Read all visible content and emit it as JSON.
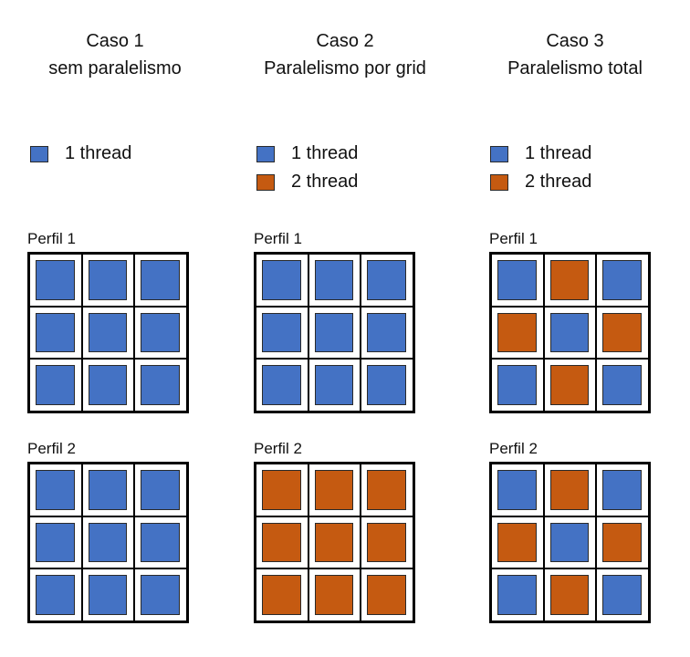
{
  "colors": {
    "blue": "#4472c4",
    "orange": "#c55a11"
  },
  "columns": [
    {
      "title_line1": "Caso 1",
      "title_line2": "sem paralelismo",
      "legend": [
        {
          "color": "blue",
          "label": "1 thread"
        }
      ],
      "profiles": [
        {
          "label": "Perfil 1",
          "cells": [
            "blue",
            "blue",
            "blue",
            "blue",
            "blue",
            "blue",
            "blue",
            "blue",
            "blue"
          ]
        },
        {
          "label": "Perfil 2",
          "cells": [
            "blue",
            "blue",
            "blue",
            "blue",
            "blue",
            "blue",
            "blue",
            "blue",
            "blue"
          ]
        }
      ]
    },
    {
      "title_line1": "Caso 2",
      "title_line2": "Paralelismo por grid",
      "legend": [
        {
          "color": "blue",
          "label": "1 thread"
        },
        {
          "color": "orange",
          "label": "2 thread"
        }
      ],
      "profiles": [
        {
          "label": "Perfil 1",
          "cells": [
            "blue",
            "blue",
            "blue",
            "blue",
            "blue",
            "blue",
            "blue",
            "blue",
            "blue"
          ]
        },
        {
          "label": "Perfil 2",
          "cells": [
            "orange",
            "orange",
            "orange",
            "orange",
            "orange",
            "orange",
            "orange",
            "orange",
            "orange"
          ]
        }
      ]
    },
    {
      "title_line1": "Caso 3",
      "title_line2": "Paralelismo total",
      "legend": [
        {
          "color": "blue",
          "label": "1 thread"
        },
        {
          "color": "orange",
          "label": "2 thread"
        }
      ],
      "profiles": [
        {
          "label": "Perfil 1",
          "cells": [
            "blue",
            "orange",
            "blue",
            "orange",
            "blue",
            "orange",
            "blue",
            "orange",
            "blue"
          ]
        },
        {
          "label": "Perfil 2",
          "cells": [
            "blue",
            "orange",
            "blue",
            "orange",
            "blue",
            "orange",
            "blue",
            "orange",
            "blue"
          ]
        }
      ]
    }
  ]
}
